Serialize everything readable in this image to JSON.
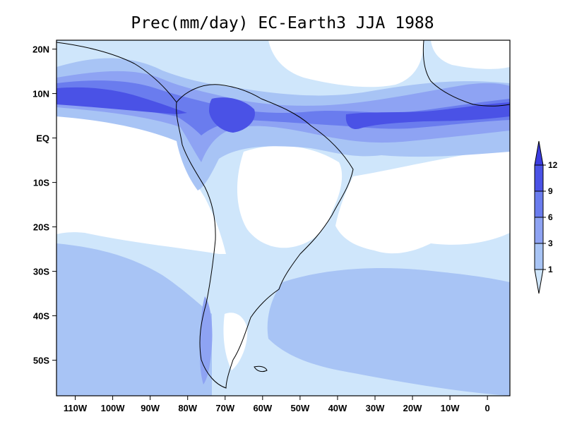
{
  "title": "Prec(mm/day) EC-Earth3 JJA 1988",
  "axes": {
    "x_ticks": [
      {
        "value": -110,
        "label": "110W"
      },
      {
        "value": -100,
        "label": "100W"
      },
      {
        "value": -90,
        "label": "90W"
      },
      {
        "value": -80,
        "label": "80W"
      },
      {
        "value": -70,
        "label": "70W"
      },
      {
        "value": -60,
        "label": "60W"
      },
      {
        "value": -50,
        "label": "50W"
      },
      {
        "value": -40,
        "label": "40W"
      },
      {
        "value": -30,
        "label": "30W"
      },
      {
        "value": -20,
        "label": "20W"
      },
      {
        "value": -10,
        "label": "10W"
      },
      {
        "value": 0,
        "label": "0"
      }
    ],
    "y_ticks": [
      {
        "value": 20,
        "label": "20N"
      },
      {
        "value": 10,
        "label": "10N"
      },
      {
        "value": 0,
        "label": "EQ"
      },
      {
        "value": -10,
        "label": "10S"
      },
      {
        "value": -20,
        "label": "20S"
      },
      {
        "value": -30,
        "label": "30S"
      },
      {
        "value": -40,
        "label": "40S"
      },
      {
        "value": -50,
        "label": "50S"
      }
    ],
    "lon_range": [
      -115,
      6
    ],
    "lat_range": [
      -58,
      22
    ]
  },
  "colorbar": {
    "levels": [
      "1",
      "3",
      "6",
      "9",
      "12"
    ],
    "colors": [
      "#ffffff",
      "#cfe6fb",
      "#a8c4f5",
      "#8ea3f3",
      "#6a7cee",
      "#4a52e6",
      "#3b3ce0"
    ]
  }
}
